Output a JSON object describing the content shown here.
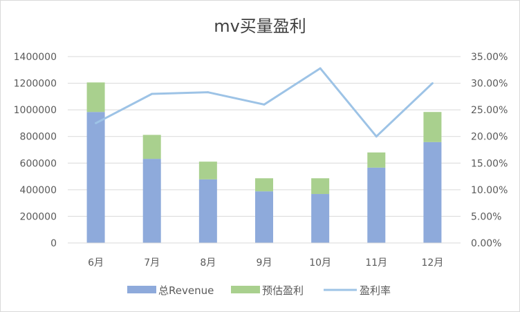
{
  "chart_data": {
    "type": "bar",
    "title": "mv买量盈利",
    "categories": [
      "6月",
      "7月",
      "8月",
      "9月",
      "10月",
      "11月",
      "12月"
    ],
    "series": [
      {
        "name": "总Revenue",
        "kind": "stacked-bar",
        "axis": "left",
        "color": "#8eaadb",
        "values": [
          984000,
          632000,
          478000,
          388000,
          368000,
          566000,
          758000
        ]
      },
      {
        "name": "预估盈利",
        "kind": "stacked-bar",
        "axis": "left",
        "color": "#a9d08e",
        "values": [
          222000,
          180000,
          133000,
          98000,
          118000,
          114000,
          226000
        ]
      },
      {
        "name": "盈利率",
        "kind": "line",
        "axis": "right",
        "color": "#9dc3e6",
        "values": [
          0.225,
          0.28,
          0.283,
          0.26,
          0.328,
          0.2,
          0.3
        ]
      }
    ],
    "y_left": {
      "min": 0,
      "max": 1400000,
      "step": 200000,
      "tick_labels": [
        "0",
        "200000",
        "400000",
        "600000",
        "800000",
        "1000000",
        "1200000",
        "1400000"
      ]
    },
    "y_right": {
      "min": 0,
      "max": 0.35,
      "step": 0.05,
      "tick_labels": [
        "0.00%",
        "5.00%",
        "10.00%",
        "15.00%",
        "20.00%",
        "25.00%",
        "30.00%",
        "35.00%"
      ]
    },
    "grid": true,
    "legend": "bottom"
  }
}
